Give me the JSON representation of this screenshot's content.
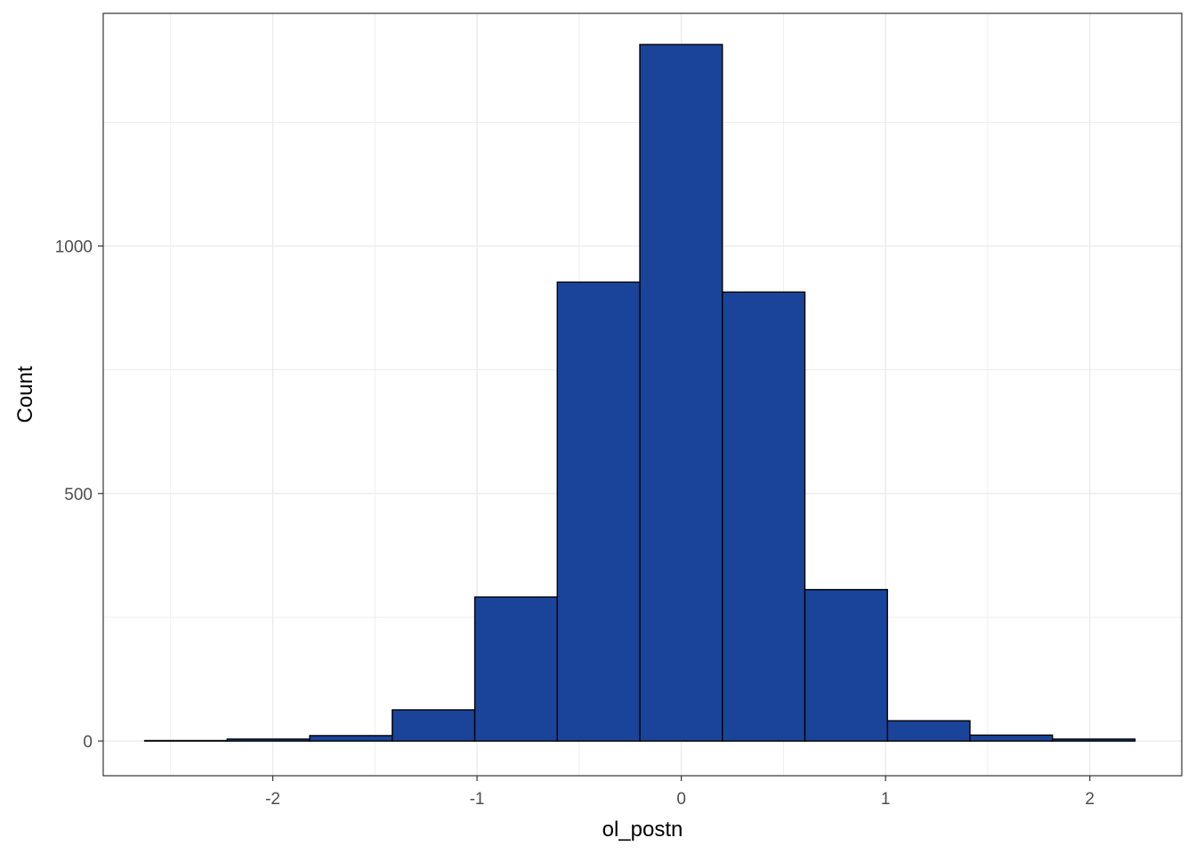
{
  "chart_data": {
    "type": "bar",
    "subtype": "histogram",
    "xlabel": "ol_postn",
    "ylabel": "Count",
    "xlim": [
      -2.83,
      2.45
    ],
    "ylim": [
      -70,
      1470
    ],
    "x_ticks": [
      -2,
      -1,
      0,
      1,
      2
    ],
    "y_ticks": [
      0,
      500,
      1000
    ],
    "grid": true,
    "legend": "none",
    "bin_width": 0.404,
    "bins": [
      {
        "x0": -2.627,
        "x1": -2.223,
        "count": 1
      },
      {
        "x0": -2.223,
        "x1": -1.819,
        "count": 4
      },
      {
        "x0": -1.819,
        "x1": -1.415,
        "count": 11
      },
      {
        "x0": -1.415,
        "x1": -1.011,
        "count": 63
      },
      {
        "x0": -1.011,
        "x1": -0.607,
        "count": 291
      },
      {
        "x0": -0.607,
        "x1": -0.203,
        "count": 927
      },
      {
        "x0": -0.203,
        "x1": 0.201,
        "count": 1407
      },
      {
        "x0": 0.201,
        "x1": 0.605,
        "count": 907
      },
      {
        "x0": 0.605,
        "x1": 1.009,
        "count": 306
      },
      {
        "x0": 1.009,
        "x1": 1.413,
        "count": 41
      },
      {
        "x0": 1.413,
        "x1": 1.817,
        "count": 12
      },
      {
        "x0": 1.817,
        "x1": 2.221,
        "count": 4
      }
    ],
    "colors": {
      "fill": "#1a4499",
      "stroke": "#000000",
      "grid": "#ebebeb",
      "panel_border": "#333333",
      "tick_text": "#4d4d4d"
    }
  }
}
